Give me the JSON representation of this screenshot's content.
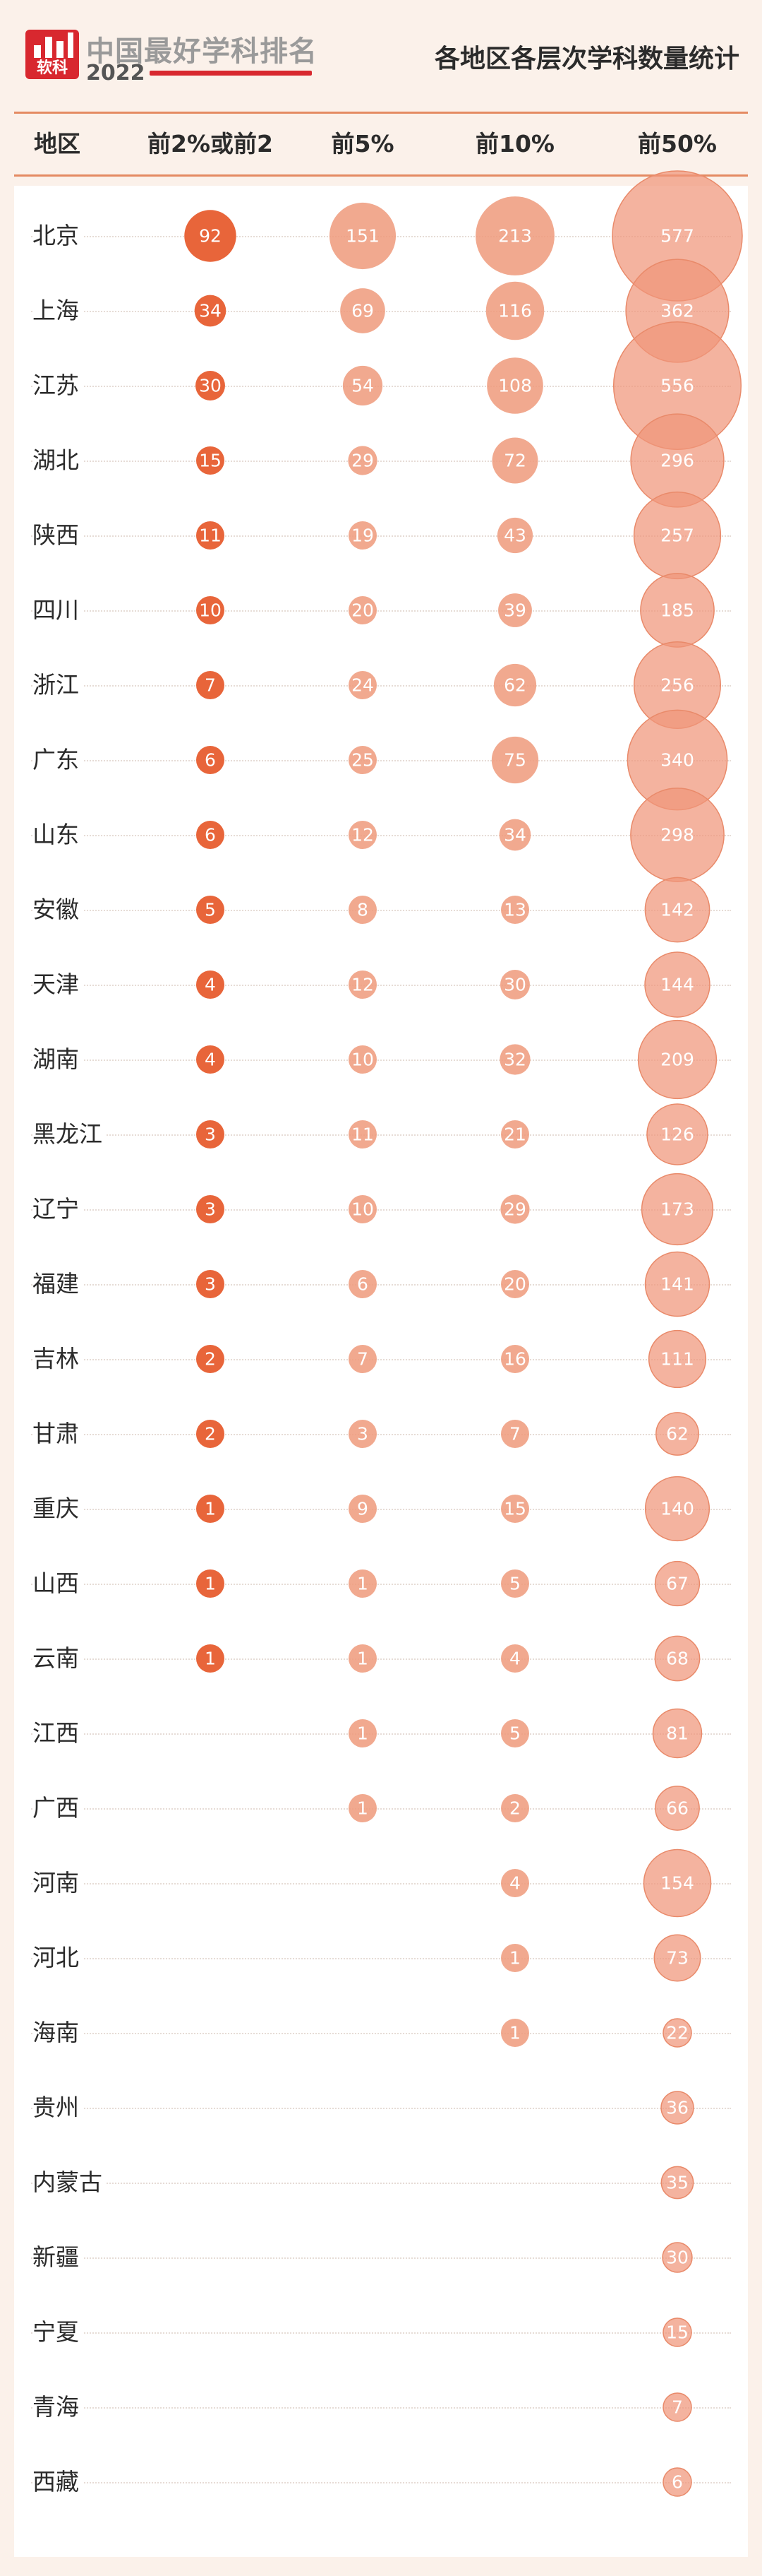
{
  "header": {
    "logo_mark_text": "软科",
    "logo_title": "中国最好学科排名",
    "logo_year": "2022",
    "page_title": "各地区各层次学科数量统计"
  },
  "columns": {
    "region": "地区",
    "top2": "前2%或前2",
    "top5": "前5%",
    "top10": "前10%",
    "top50": "前50%"
  },
  "colors": {
    "background": "#fbf1ea",
    "table_background": "#ffffff",
    "top2": "#e8653a",
    "top5": "#ee9a7b",
    "top10": "#ee9a7b",
    "top50": "#f0957a",
    "brand_red": "#d8282f"
  },
  "chart_data": {
    "type": "bubble-table",
    "title": "各地区各层次学科数量统计",
    "categories": [
      "北京",
      "上海",
      "江苏",
      "湖北",
      "陕西",
      "四川",
      "浙江",
      "广东",
      "山东",
      "安徽",
      "天津",
      "湖南",
      "黑龙江",
      "辽宁",
      "福建",
      "吉林",
      "甘肃",
      "重庆",
      "山西",
      "云南",
      "江西",
      "广西",
      "河南",
      "河北",
      "海南",
      "贵州",
      "内蒙古",
      "新疆",
      "宁夏",
      "青海",
      "西藏"
    ],
    "series": [
      {
        "name": "前2%或前2",
        "values": [
          92,
          34,
          30,
          15,
          11,
          10,
          7,
          6,
          6,
          5,
          4,
          4,
          3,
          3,
          3,
          2,
          2,
          1,
          1,
          1,
          null,
          null,
          null,
          null,
          null,
          null,
          null,
          null,
          null,
          null,
          null
        ]
      },
      {
        "name": "前5%",
        "values": [
          151,
          69,
          54,
          29,
          19,
          20,
          24,
          25,
          12,
          8,
          12,
          10,
          11,
          10,
          6,
          7,
          3,
          9,
          1,
          1,
          1,
          1,
          null,
          null,
          null,
          null,
          null,
          null,
          null,
          null,
          null
        ]
      },
      {
        "name": "前10%",
        "values": [
          213,
          116,
          108,
          72,
          43,
          39,
          62,
          75,
          34,
          13,
          30,
          32,
          21,
          29,
          20,
          16,
          7,
          15,
          5,
          4,
          5,
          2,
          4,
          1,
          1,
          null,
          null,
          null,
          null,
          null,
          null
        ]
      },
      {
        "name": "前50%",
        "values": [
          577,
          362,
          556,
          296,
          257,
          185,
          256,
          340,
          298,
          142,
          144,
          209,
          126,
          173,
          141,
          111,
          62,
          140,
          67,
          68,
          81,
          66,
          154,
          73,
          22,
          36,
          35,
          30,
          15,
          7,
          6
        ]
      }
    ]
  }
}
